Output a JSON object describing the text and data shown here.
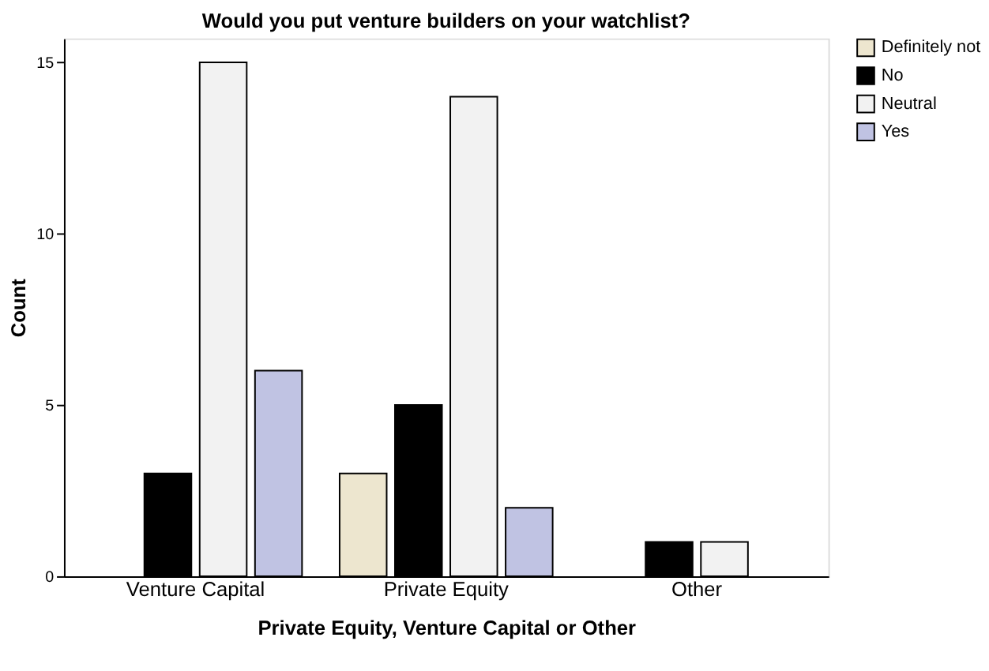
{
  "chart_data": {
    "type": "bar",
    "title": "Would you put venture builders on your watchlist?",
    "xlabel": "Private Equity, Venture Capital or Other",
    "ylabel": "Count",
    "categories": [
      "Venture Capital",
      "Private Equity",
      "Other"
    ],
    "series": [
      {
        "name": "Definitely not",
        "color": "#ede6cf",
        "values": [
          null,
          3,
          null
        ]
      },
      {
        "name": "No",
        "color": "#000000",
        "values": [
          3,
          5,
          1
        ]
      },
      {
        "name": "Neutral",
        "color": "#f2f2f2",
        "values": [
          15,
          14,
          1
        ]
      },
      {
        "name": "Yes",
        "color": "#c0c3e3",
        "values": [
          6,
          2,
          null
        ]
      }
    ],
    "ylim": [
      0,
      15.7
    ],
    "yticks": [
      0,
      5,
      10,
      15
    ],
    "grid": false,
    "legend": "top right"
  }
}
